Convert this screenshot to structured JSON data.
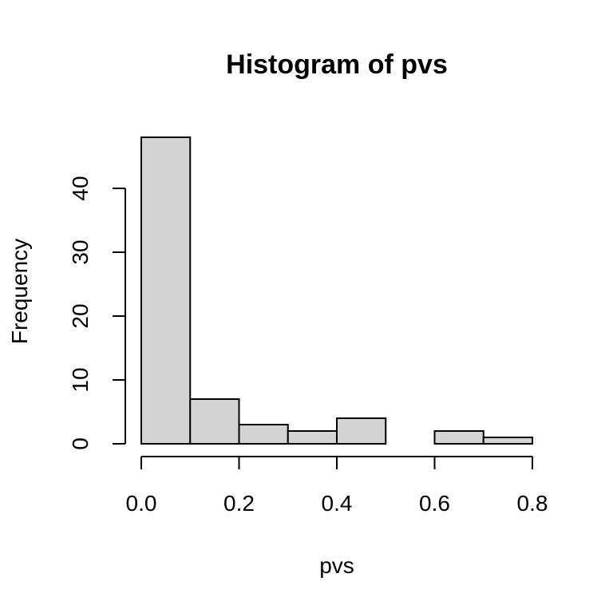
{
  "chart_data": {
    "type": "bar",
    "title": "Histogram of pvs",
    "xlabel": "pvs",
    "ylabel": "Frequency",
    "bins": [
      {
        "start": 0.0,
        "end": 0.1,
        "count": 48
      },
      {
        "start": 0.1,
        "end": 0.2,
        "count": 7
      },
      {
        "start": 0.2,
        "end": 0.3,
        "count": 3
      },
      {
        "start": 0.3,
        "end": 0.4,
        "count": 2
      },
      {
        "start": 0.4,
        "end": 0.5,
        "count": 4
      },
      {
        "start": 0.5,
        "end": 0.6,
        "count": 0
      },
      {
        "start": 0.6,
        "end": 0.7,
        "count": 2
      },
      {
        "start": 0.7,
        "end": 0.8,
        "count": 1
      }
    ],
    "xlim": [
      0.0,
      0.8
    ],
    "ylim": [
      0,
      48
    ],
    "xticks": [
      0.0,
      0.2,
      0.4,
      0.6,
      0.8
    ],
    "xtick_labels": [
      "0.0",
      "0.2",
      "0.4",
      "0.6",
      "0.8"
    ],
    "yticks": [
      0,
      10,
      20,
      30,
      40
    ],
    "ytick_labels": [
      "0",
      "10",
      "20",
      "30",
      "40"
    ],
    "bar_fill": "#d3d3d3",
    "bar_stroke": "#000000",
    "grid": false,
    "legend": "none"
  }
}
